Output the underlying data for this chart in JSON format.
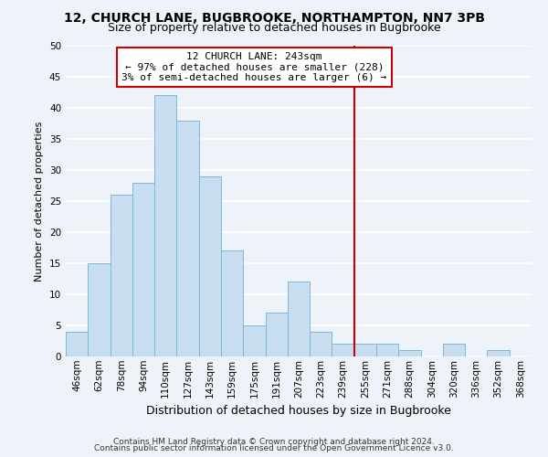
{
  "title1": "12, CHURCH LANE, BUGBROOKE, NORTHAMPTON, NN7 3PB",
  "title2": "Size of property relative to detached houses in Bugbrooke",
  "xlabel": "Distribution of detached houses by size in Bugbrooke",
  "ylabel": "Number of detached properties",
  "bin_labels": [
    "46sqm",
    "62sqm",
    "78sqm",
    "94sqm",
    "110sqm",
    "127sqm",
    "143sqm",
    "159sqm",
    "175sqm",
    "191sqm",
    "207sqm",
    "223sqm",
    "239sqm",
    "255sqm",
    "271sqm",
    "288sqm",
    "304sqm",
    "320sqm",
    "336sqm",
    "352sqm",
    "368sqm"
  ],
  "bin_values": [
    4,
    15,
    26,
    28,
    42,
    38,
    29,
    17,
    5,
    7,
    12,
    4,
    2,
    2,
    2,
    1,
    0,
    2,
    0,
    1,
    0
  ],
  "bar_color": "#c9ddf0",
  "bar_edge_color": "#7ab8d9",
  "annotation_title": "12 CHURCH LANE: 243sqm",
  "annotation_line1": "← 97% of detached houses are smaller (228)",
  "annotation_line2": "3% of semi-detached houses are larger (6) →",
  "annotation_box_color": "#ffffff",
  "annotation_box_edge_color": "#cc0000",
  "line_color": "#cc0000",
  "line_bin_index": 12,
  "ylim": [
    0,
    50
  ],
  "yticks": [
    0,
    5,
    10,
    15,
    20,
    25,
    30,
    35,
    40,
    45,
    50
  ],
  "footer1": "Contains HM Land Registry data © Crown copyright and database right 2024.",
  "footer2": "Contains public sector information licensed under the Open Government Licence v3.0.",
  "background_color": "#eef2f9",
  "grid_color": "#ffffff",
  "title1_fontsize": 10,
  "title2_fontsize": 9,
  "xlabel_fontsize": 9,
  "ylabel_fontsize": 8,
  "tick_fontsize": 7.5,
  "footer_fontsize": 6.5,
  "annot_fontsize": 8
}
